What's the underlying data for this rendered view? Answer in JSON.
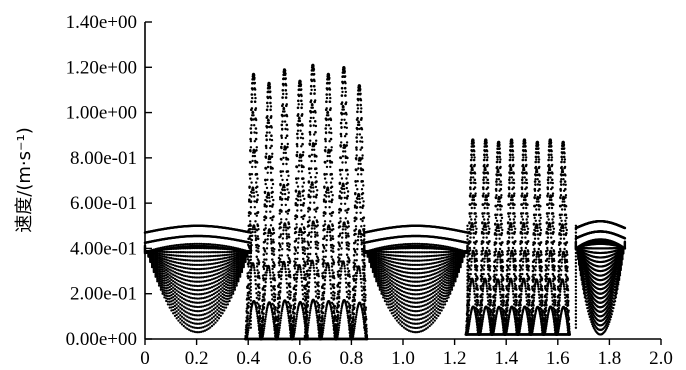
{
  "chart_data": {
    "type": "scatter",
    "title": "",
    "xlabel": "",
    "ylabel": "速度/(m·s⁻¹)",
    "xlim": [
      0,
      2.0
    ],
    "ylim": [
      0,
      1.4
    ],
    "x_ticks": [
      "0",
      "0.2",
      "0.4",
      "0.6",
      "0.8",
      "1.0",
      "1.2",
      "1.4",
      "1.6",
      "1.8",
      "2.0"
    ],
    "y_ticks": [
      "0.00e+00",
      "2.00e-01",
      "4.00e-01",
      "6.00e-01",
      "8.00e-01",
      "1.00e+00",
      "1.20e+00",
      "1.40e+00"
    ],
    "grid": false,
    "legend": "none",
    "marker_color": "#000000",
    "series": [
      {
        "segments": [
          {
            "kind": "fan",
            "x_start": 0.0,
            "x_end": 0.41,
            "upper": 0.48,
            "min_bottom": 0.03
          },
          {
            "kind": "peaks",
            "x_start": 0.41,
            "x_end": 0.85,
            "peak_x": [
              0.42,
              0.48,
              0.54,
              0.6,
              0.65,
              0.71,
              0.77,
              0.83
            ],
            "peak_y": [
              1.17,
              1.13,
              1.19,
              1.14,
              1.21,
              1.17,
              1.2,
              1.12
            ],
            "min_y": 0.0
          },
          {
            "kind": "fan",
            "x_start": 0.85,
            "x_end": 1.25,
            "upper": 0.48,
            "min_bottom": 0.03
          },
          {
            "kind": "peaks",
            "x_start": 1.25,
            "x_end": 1.67,
            "peak_x": [
              1.27,
              1.32,
              1.37,
              1.42,
              1.47,
              1.52,
              1.57,
              1.62
            ],
            "peak_y": [
              0.88,
              0.88,
              0.87,
              0.88,
              0.88,
              0.87,
              0.88,
              0.87
            ],
            "min_y": 0.02
          },
          {
            "kind": "fan",
            "x_start": 1.67,
            "x_end": 1.86,
            "upper": 0.5,
            "min_bottom": 0.02
          }
        ]
      }
    ]
  }
}
